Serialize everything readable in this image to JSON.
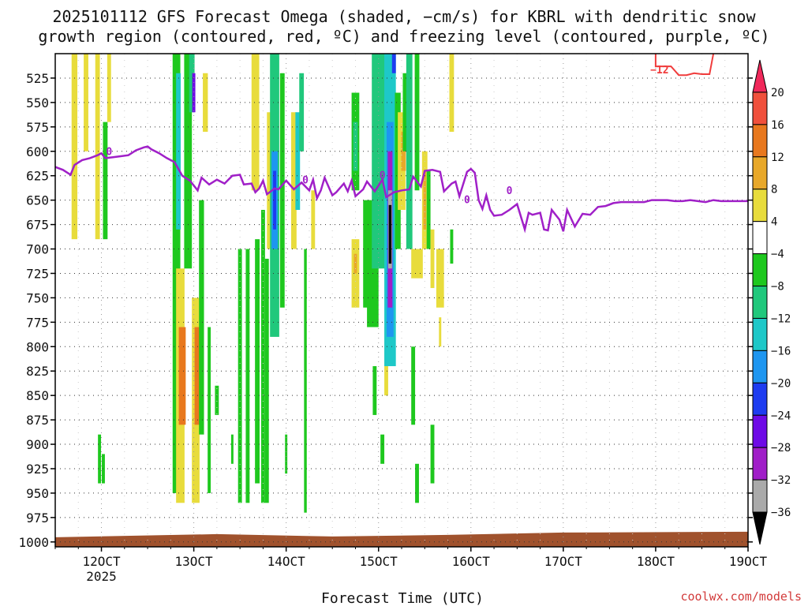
{
  "title": {
    "line1": "2025101112 GFS Forecast Omega (shaded, −cm/s) for KBRL with dendritic snow",
    "line2": "growth region (contoured, red, ºC) and freezing level (contoured, purple, ºC)"
  },
  "credit": "coolwx.com/models",
  "chart_data": {
    "type": "heatmap",
    "xlabel": "Forecast Time (UTC)",
    "ylabel": "",
    "x_ticks": [
      "12OCT",
      "13OCT",
      "14OCT",
      "15OCT",
      "16OCT",
      "17OCT",
      "18OCT",
      "19OCT"
    ],
    "x_tick_year": "2025",
    "x_range_hours_from_12OCT_00Z": [
      -12,
      168
    ],
    "y_ticks": [
      525,
      550,
      575,
      600,
      625,
      650,
      675,
      700,
      725,
      750,
      775,
      800,
      825,
      850,
      875,
      900,
      925,
      950,
      975,
      1000
    ],
    "ylim_hpa": [
      1005,
      500
    ],
    "grid": true,
    "colorbar": {
      "labels": [
        "20",
        "16",
        "12",
        "8",
        "4",
        "−4",
        "−8",
        "−12",
        "−16",
        "−20",
        "−24",
        "−28",
        "−32",
        "−36"
      ],
      "colors": [
        "#f0285a",
        "#f0503c",
        "#e8781e",
        "#e8a82a",
        "#e8dc3c",
        "#ffffff",
        "#1ec81e",
        "#20c87c",
        "#1ec8c8",
        "#1e96f0",
        "#1e3cf0",
        "#6e0ae6",
        "#a01ec8",
        "#aaaaaa",
        "#000000"
      ]
    },
    "freezing_level": {
      "label": "0",
      "color": "#a020c8",
      "points": [
        [
          -12,
          616
        ],
        [
          -10,
          619
        ],
        [
          -8,
          624
        ],
        [
          -7,
          614
        ],
        [
          -5,
          609
        ],
        [
          -3,
          607
        ],
        [
          -1,
          604
        ],
        [
          0,
          602
        ],
        [
          1,
          607
        ],
        [
          3,
          606
        ],
        [
          5,
          605
        ],
        [
          7,
          604
        ],
        [
          9,
          599
        ],
        [
          11,
          596
        ],
        [
          12,
          595
        ],
        [
          13,
          598
        ],
        [
          15,
          602
        ],
        [
          17,
          607
        ],
        [
          19,
          611
        ],
        [
          21,
          625
        ],
        [
          23,
          630
        ],
        [
          25,
          640
        ],
        [
          26,
          627
        ],
        [
          28,
          634
        ],
        [
          30,
          629
        ],
        [
          32,
          633
        ],
        [
          34,
          625
        ],
        [
          36,
          624
        ],
        [
          37,
          634
        ],
        [
          39,
          633
        ],
        [
          40,
          642
        ],
        [
          41,
          638
        ],
        [
          42,
          630
        ],
        [
          43,
          644
        ],
        [
          45,
          638
        ],
        [
          46,
          639
        ],
        [
          48,
          630
        ],
        [
          50,
          639
        ],
        [
          52,
          632
        ],
        [
          54,
          640
        ],
        [
          55,
          629
        ],
        [
          56,
          648
        ],
        [
          57,
          640
        ],
        [
          58,
          627
        ],
        [
          60,
          645
        ],
        [
          61,
          642
        ],
        [
          63,
          633
        ],
        [
          64,
          641
        ],
        [
          65,
          630
        ],
        [
          66,
          646
        ],
        [
          68,
          639
        ],
        [
          69,
          631
        ],
        [
          71,
          641
        ],
        [
          73,
          629
        ],
        [
          74,
          647
        ],
        [
          76,
          642
        ],
        [
          78,
          640
        ],
        [
          80,
          639
        ],
        [
          81,
          626
        ],
        [
          83,
          636
        ],
        [
          84,
          620
        ],
        [
          86,
          619
        ],
        [
          88,
          621
        ],
        [
          89,
          641
        ],
        [
          91,
          633
        ],
        [
          92,
          631
        ],
        [
          93,
          646
        ],
        [
          95,
          621
        ],
        [
          96,
          618
        ],
        [
          97,
          622
        ],
        [
          98,
          650
        ],
        [
          99,
          659
        ],
        [
          100,
          645
        ],
        [
          101,
          660
        ],
        [
          102,
          666
        ],
        [
          104,
          665
        ],
        [
          106,
          660
        ],
        [
          108,
          654
        ],
        [
          110,
          680
        ],
        [
          111,
          663
        ],
        [
          112,
          665
        ],
        [
          114,
          663
        ],
        [
          115,
          680
        ],
        [
          116,
          681
        ],
        [
          117,
          660
        ],
        [
          119,
          670
        ],
        [
          120,
          682
        ],
        [
          121,
          660
        ],
        [
          123,
          677
        ],
        [
          125,
          664
        ],
        [
          127,
          665
        ],
        [
          129,
          657
        ],
        [
          131,
          656
        ],
        [
          133,
          653
        ],
        [
          135,
          652
        ],
        [
          137,
          652
        ],
        [
          139,
          652
        ],
        [
          141,
          652
        ],
        [
          143,
          650
        ],
        [
          145,
          650
        ],
        [
          147,
          650
        ],
        [
          149,
          651
        ],
        [
          151,
          651
        ],
        [
          153,
          650
        ],
        [
          155,
          651
        ],
        [
          157,
          652
        ],
        [
          159,
          650
        ],
        [
          161,
          651
        ],
        [
          163,
          651
        ],
        [
          165,
          651
        ],
        [
          167,
          651
        ],
        [
          168,
          651
        ]
      ]
    },
    "dgz_contour": {
      "label": "−12",
      "color": "#f03c3c",
      "points": [
        [
          144,
          500
        ],
        [
          144,
          513
        ],
        [
          146,
          513
        ],
        [
          148,
          513
        ],
        [
          150,
          522
        ],
        [
          152,
          522
        ],
        [
          154,
          520
        ],
        [
          156,
          521
        ],
        [
          158,
          521
        ],
        [
          159,
          500
        ]
      ]
    },
    "surface_pressure_band": {
      "color": "#a0522d",
      "top_hpa_approx": 992
    },
    "omega_cells": [
      {
        "t": -7,
        "p0": 500,
        "p1": 690,
        "w": 1.5,
        "c": "#e8dc3c"
      },
      {
        "t": -4,
        "p0": 500,
        "p1": 600,
        "w": 1.2,
        "c": "#e8dc3c"
      },
      {
        "t": -1,
        "p0": 500,
        "p1": 690,
        "w": 1.2,
        "c": "#e8dc3c"
      },
      {
        "t": 1,
        "p0": 570,
        "p1": 690,
        "w": 1.2,
        "c": "#1ec81e"
      },
      {
        "t": 2,
        "p0": 500,
        "p1": 570,
        "w": 1,
        "c": "#e8dc3c"
      },
      {
        "t": -0.5,
        "p0": 890,
        "p1": 940,
        "w": 0.8,
        "c": "#1ec81e"
      },
      {
        "t": 0.5,
        "p0": 910,
        "p1": 940,
        "w": 0.8,
        "c": "#1ec81e"
      },
      {
        "t": 19.5,
        "p0": 500,
        "p1": 950,
        "w": 2,
        "c": "#1ec81e"
      },
      {
        "t": 20,
        "p0": 520,
        "p1": 680,
        "w": 1.2,
        "c": "#1ec8c8"
      },
      {
        "t": 20.5,
        "p0": 720,
        "p1": 960,
        "w": 2.2,
        "c": "#e8dc3c"
      },
      {
        "t": 21,
        "p0": 780,
        "p1": 880,
        "w": 1.8,
        "c": "#e8781e"
      },
      {
        "t": 22.5,
        "p0": 500,
        "p1": 720,
        "w": 2,
        "c": "#1ec81e"
      },
      {
        "t": 23.5,
        "p0": 500,
        "p1": 560,
        "w": 1.4,
        "c": "#20c87c"
      },
      {
        "t": 24,
        "p0": 520,
        "p1": 560,
        "w": 0.8,
        "c": "#6e0ae6"
      },
      {
        "t": 24.5,
        "p0": 750,
        "p1": 960,
        "w": 2,
        "c": "#e8dc3c"
      },
      {
        "t": 25,
        "p0": 780,
        "p1": 880,
        "w": 1.6,
        "c": "#e8781e"
      },
      {
        "t": 26,
        "p0": 650,
        "p1": 890,
        "w": 1.3,
        "c": "#1ec81e"
      },
      {
        "t": 27,
        "p0": 520,
        "p1": 580,
        "w": 1.3,
        "c": "#e8dc3c"
      },
      {
        "t": 28,
        "p0": 780,
        "p1": 950,
        "w": 0.8,
        "c": "#1ec81e"
      },
      {
        "t": 30,
        "p0": 840,
        "p1": 870,
        "w": 1,
        "c": "#1ec81e"
      },
      {
        "t": 34,
        "p0": 890,
        "p1": 920,
        "w": 0.6,
        "c": "#1ec81e"
      },
      {
        "t": 36,
        "p0": 700,
        "p1": 960,
        "w": 1,
        "c": "#1ec81e"
      },
      {
        "t": 38,
        "p0": 700,
        "p1": 960,
        "w": 1,
        "c": "#1ec81e"
      },
      {
        "t": 40,
        "p0": 500,
        "p1": 640,
        "w": 2,
        "c": "#e8dc3c"
      },
      {
        "t": 40.5,
        "p0": 690,
        "p1": 940,
        "w": 1.2,
        "c": "#1ec81e"
      },
      {
        "t": 42,
        "p0": 660,
        "p1": 960,
        "w": 1,
        "c": "#1ec81e"
      },
      {
        "t": 43,
        "p0": 710,
        "p1": 960,
        "w": 1,
        "c": "#1ec81e"
      },
      {
        "t": 44,
        "p0": 560,
        "p1": 700,
        "w": 2,
        "c": "#e8dc3c"
      },
      {
        "t": 45,
        "p0": 500,
        "p1": 790,
        "w": 2.4,
        "c": "#20c87c"
      },
      {
        "t": 45,
        "p0": 600,
        "p1": 700,
        "w": 1.6,
        "c": "#1e96f0"
      },
      {
        "t": 45,
        "p0": 620,
        "p1": 680,
        "w": 0.8,
        "c": "#1e3cf0"
      },
      {
        "t": 47,
        "p0": 520,
        "p1": 760,
        "w": 1.2,
        "c": "#1ec81e"
      },
      {
        "t": 48,
        "p0": 890,
        "p1": 930,
        "w": 0.6,
        "c": "#1ec81e"
      },
      {
        "t": 50,
        "p0": 560,
        "p1": 700,
        "w": 1.4,
        "c": "#e8dc3c"
      },
      {
        "t": 51,
        "p0": 560,
        "p1": 660,
        "w": 1.2,
        "c": "#1ec8c8"
      },
      {
        "t": 52,
        "p0": 520,
        "p1": 600,
        "w": 1.2,
        "c": "#20c87c"
      },
      {
        "t": 53,
        "p0": 700,
        "p1": 970,
        "w": 0.7,
        "c": "#1ec81e"
      },
      {
        "t": 55,
        "p0": 640,
        "p1": 700,
        "w": 1,
        "c": "#e8dc3c"
      },
      {
        "t": 66,
        "p0": 540,
        "p1": 640,
        "w": 2,
        "c": "#1ec81e"
      },
      {
        "t": 66,
        "p0": 570,
        "p1": 620,
        "w": 1.2,
        "c": "#20c87c"
      },
      {
        "t": 66,
        "p0": 690,
        "p1": 760,
        "w": 2,
        "c": "#e8dc3c"
      },
      {
        "t": 66,
        "p0": 705,
        "p1": 725,
        "w": 0.8,
        "c": "#e8a82a"
      },
      {
        "t": 69,
        "p0": 650,
        "p1": 760,
        "w": 2,
        "c": "#1ec81e"
      },
      {
        "t": 70.5,
        "p0": 650,
        "p1": 780,
        "w": 3,
        "c": "#1ec81e"
      },
      {
        "t": 71,
        "p0": 820,
        "p1": 870,
        "w": 1,
        "c": "#1ec81e"
      },
      {
        "t": 72,
        "p0": 500,
        "p1": 720,
        "w": 3.5,
        "c": "#20c87c"
      },
      {
        "t": 73,
        "p0": 890,
        "p1": 920,
        "w": 1,
        "c": "#1ec81e"
      },
      {
        "t": 74,
        "p0": 780,
        "p1": 850,
        "w": 1,
        "c": "#e8dc3c"
      },
      {
        "t": 75,
        "p0": 500,
        "p1": 820,
        "w": 3,
        "c": "#1ec8c8"
      },
      {
        "t": 75,
        "p0": 570,
        "p1": 790,
        "w": 1.8,
        "c": "#1e96f0"
      },
      {
        "t": 75,
        "p0": 600,
        "p1": 760,
        "w": 1.2,
        "c": "#a01ec8"
      },
      {
        "t": 75,
        "p0": 640,
        "p1": 720,
        "w": 1,
        "c": "#aaaaaa"
      },
      {
        "t": 75,
        "p0": 655,
        "p1": 715,
        "w": 0.7,
        "c": "#000000"
      },
      {
        "t": 76,
        "p0": 500,
        "p1": 520,
        "w": 1,
        "c": "#1e3cf0"
      },
      {
        "t": 77,
        "p0": 540,
        "p1": 700,
        "w": 1.5,
        "c": "#1ec81e"
      },
      {
        "t": 78,
        "p0": 560,
        "p1": 660,
        "w": 2,
        "c": "#e8dc3c"
      },
      {
        "t": 78.5,
        "p0": 580,
        "p1": 620,
        "w": 1.2,
        "c": "#e8a82a"
      },
      {
        "t": 79,
        "p0": 520,
        "p1": 600,
        "w": 1.4,
        "c": "#1ec81e"
      },
      {
        "t": 80,
        "p0": 500,
        "p1": 700,
        "w": 1.6,
        "c": "#20c87c"
      },
      {
        "t": 81,
        "p0": 800,
        "p1": 880,
        "w": 1,
        "c": "#1ec81e"
      },
      {
        "t": 82,
        "p0": 920,
        "p1": 960,
        "w": 1,
        "c": "#1ec81e"
      },
      {
        "t": 82,
        "p0": 500,
        "p1": 640,
        "w": 1.2,
        "c": "#1ec81e"
      },
      {
        "t": 82,
        "p0": 700,
        "p1": 730,
        "w": 3,
        "c": "#e8dc3c"
      },
      {
        "t": 84,
        "p0": 600,
        "p1": 700,
        "w": 1.4,
        "c": "#e8dc3c"
      },
      {
        "t": 84,
        "p0": 620,
        "p1": 680,
        "w": 0.7,
        "c": "#e8a82a"
      },
      {
        "t": 85,
        "p0": 620,
        "p1": 700,
        "w": 1,
        "c": "#1ec81e"
      },
      {
        "t": 86,
        "p0": 680,
        "p1": 740,
        "w": 1,
        "c": "#e8dc3c"
      },
      {
        "t": 86,
        "p0": 880,
        "p1": 940,
        "w": 1,
        "c": "#1ec81e"
      },
      {
        "t": 88,
        "p0": 700,
        "p1": 760,
        "w": 2,
        "c": "#e8dc3c"
      },
      {
        "t": 88,
        "p0": 770,
        "p1": 800,
        "w": 0.6,
        "c": "#e8dc3c"
      },
      {
        "t": 91,
        "p0": 500,
        "p1": 580,
        "w": 1.2,
        "c": "#e8dc3c"
      },
      {
        "t": 91,
        "p0": 680,
        "p1": 715,
        "w": 0.8,
        "c": "#1ec81e"
      }
    ]
  }
}
